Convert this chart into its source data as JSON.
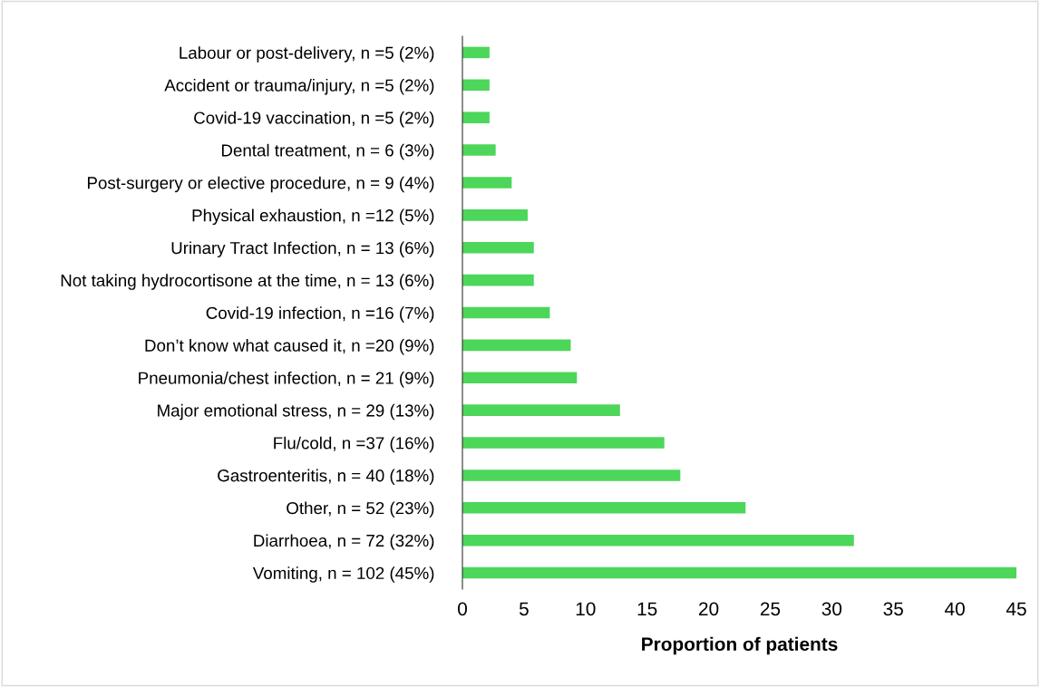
{
  "chart_data": {
    "type": "bar",
    "orientation": "horizontal",
    "xlabel": "Proportion of patients",
    "categories": [
      "Labour or post-delivery, n =5 (2%)",
      "Accident or trauma/injury, n =5 (2%)",
      "Covid-19 vaccination, n =5 (2%)",
      "Dental treatment, n = 6 (3%)",
      "Post-surgery or elective procedure, n = 9 (4%)",
      "Physical exhaustion, n =12 (5%)",
      "Urinary Tract Infection, n = 13 (6%)",
      "Not taking hydrocortisone at the time, n = 13 (6%)",
      "Covid-19 infection, n =16 (7%)",
      "Don’t know what caused it, n =20 (9%)",
      "Pneumonia/chest infection, n = 21 (9%)",
      "Major emotional stress, n = 29 (13%)",
      "Flu/cold, n =37 (16%)",
      "Gastroenteritis, n = 40 (18%)",
      "Other, n = 52 (23%)",
      "Diarrhoea, n = 72 (32%)",
      "Vomiting, n = 102 (45%)"
    ],
    "values": [
      2.2,
      2.2,
      2.2,
      2.7,
      4.0,
      5.3,
      5.8,
      5.8,
      7.1,
      8.8,
      9.3,
      12.8,
      16.4,
      17.7,
      23.0,
      31.8,
      45
    ],
    "color": "#4cd65a",
    "xlim": [
      0,
      45
    ],
    "xticks": [
      0,
      5,
      10,
      15,
      20,
      25,
      30,
      35,
      40,
      45
    ],
    "grid": false,
    "legend": false
  }
}
